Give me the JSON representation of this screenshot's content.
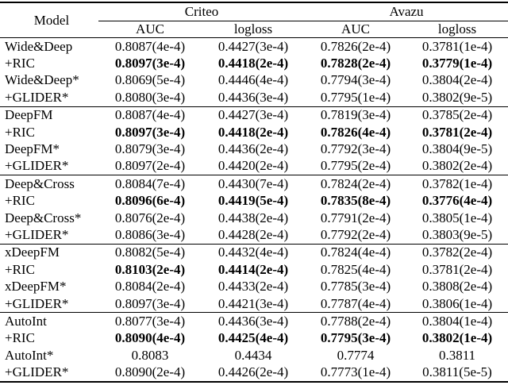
{
  "page": {
    "background": "#ffffff",
    "text_color": "#000000"
  },
  "table": {
    "model_header": "Model",
    "groups": [
      {
        "label": "Criteo",
        "columns": [
          "AUC",
          "logloss"
        ]
      },
      {
        "label": "Avazu",
        "columns": [
          "AUC",
          "logloss"
        ]
      }
    ],
    "blocks": [
      {
        "rows": [
          {
            "model": "Wide&Deep",
            "values": [
              "0.8087(4e-4)",
              "0.4427(3e-4)",
              "0.7826(2e-4)",
              "0.3781(1e-4)"
            ]
          },
          {
            "model": "+RIC",
            "values": [
              "0.8097(3e-4)",
              "0.4418(2e-4)",
              "0.7828(2e-4)",
              "0.3779(1e-4)"
            ],
            "bold": [
              true,
              true,
              true,
              true
            ]
          },
          {
            "model": "Wide&Deep*",
            "values": [
              "0.8069(5e-4)",
              "0.4446(4e-4)",
              "0.7794(3e-4)",
              "0.3804(2e-4)"
            ]
          },
          {
            "model": "+GLIDER*",
            "values": [
              "0.8080(3e-4)",
              "0.4436(3e-4)",
              "0.7795(1e-4)",
              "0.3802(9e-5)"
            ]
          }
        ]
      },
      {
        "rows": [
          {
            "model": "DeepFM",
            "values": [
              "0.8087(4e-4)",
              "0.4427(3e-4)",
              "0.7819(3e-4)",
              "0.3785(2e-4)"
            ]
          },
          {
            "model": "+RIC",
            "values": [
              "0.8097(3e-4)",
              "0.4418(2e-4)",
              "0.7826(4e-4)",
              "0.3781(2e-4)"
            ],
            "bold": [
              true,
              true,
              true,
              true
            ]
          },
          {
            "model": "DeepFM*",
            "values": [
              "0.8079(3e-4)",
              "0.4436(2e-4)",
              "0.7792(3e-4)",
              "0.3804(9e-5)"
            ]
          },
          {
            "model": "+GLIDER*",
            "values": [
              "0.8097(2e-4)",
              "0.4420(2e-4)",
              "0.7795(2e-4)",
              "0.3802(2e-4)"
            ]
          }
        ]
      },
      {
        "rows": [
          {
            "model": "Deep&Cross",
            "values": [
              "0.8084(7e-4)",
              "0.4430(7e-4)",
              "0.7824(2e-4)",
              "0.3782(1e-4)"
            ]
          },
          {
            "model": "+RIC",
            "values": [
              "0.8096(6e-4)",
              "0.4419(5e-4)",
              "0.7835(8e-4)",
              "0.3776(4e-4)"
            ],
            "bold": [
              true,
              true,
              true,
              true
            ]
          },
          {
            "model": "Deep&Cross*",
            "values": [
              "0.8076(2e-4)",
              "0.4438(2e-4)",
              "0.7791(2e-4)",
              "0.3805(1e-4)"
            ]
          },
          {
            "model": "+GLIDER*",
            "values": [
              "0.8086(3e-4)",
              "0.4428(2e-4)",
              "0.7792(2e-4)",
              "0.3803(9e-5)"
            ]
          }
        ]
      },
      {
        "rows": [
          {
            "model": "xDeepFM",
            "values": [
              "0.8082(5e-4)",
              "0.4432(4e-4)",
              "0.7824(4e-4)",
              "0.3782(2e-4)"
            ]
          },
          {
            "model": "+RIC",
            "values": [
              "0.8103(2e-4)",
              "0.4414(2e-4)",
              "0.7825(4e-4)",
              "0.3781(2e-4)"
            ],
            "bold": [
              true,
              true,
              false,
              false
            ]
          },
          {
            "model": "xDeepFM*",
            "values": [
              "0.8084(2e-4)",
              "0.4433(2e-4)",
              "0.7785(3e-4)",
              "0.3808(2e-4)"
            ]
          },
          {
            "model": "+GLIDER*",
            "values": [
              "0.8097(3e-4)",
              "0.4421(3e-4)",
              "0.7787(4e-4)",
              "0.3806(1e-4)"
            ]
          }
        ]
      },
      {
        "rows": [
          {
            "model": "AutoInt",
            "values": [
              "0.8077(3e-4)",
              "0.4436(3e-4)",
              "0.7788(2e-4)",
              "0.3804(1e-4)"
            ]
          },
          {
            "model": "+RIC",
            "values": [
              "0.8090(4e-4)",
              "0.4425(4e-4)",
              "0.7795(3e-4)",
              "0.3802(1e-4)"
            ],
            "bold": [
              true,
              true,
              true,
              true
            ]
          },
          {
            "model": "AutoInt*",
            "values": [
              "0.8083",
              "0.4434",
              "0.7774",
              "0.3811"
            ]
          },
          {
            "model": "+GLIDER*",
            "values": [
              "0.8090(2e-4)",
              "0.4426(2e-4)",
              "0.7773(1e-4)",
              "0.3811(5e-5)"
            ]
          }
        ]
      }
    ]
  }
}
